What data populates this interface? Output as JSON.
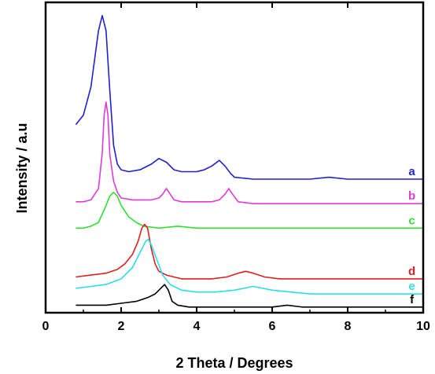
{
  "chart_data": {
    "type": "line",
    "xlabel": "2 Theta / Degrees",
    "ylabel": "Intensity / a.u",
    "xlim": [
      0,
      10
    ],
    "xticks": [
      "0",
      "2",
      "4",
      "6",
      "8",
      "10"
    ],
    "yticks_shown": false,
    "grid": false,
    "legend": "inline labels at right end of each trace",
    "series": [
      {
        "name": "a",
        "color": "#1f1fd6",
        "points": [
          [
            0.8,
            100
          ],
          [
            1.0,
            105
          ],
          [
            1.2,
            120
          ],
          [
            1.3,
            135
          ],
          [
            1.4,
            150
          ],
          [
            1.5,
            158
          ],
          [
            1.6,
            150
          ],
          [
            1.7,
            118
          ],
          [
            1.8,
            89
          ],
          [
            1.9,
            79
          ],
          [
            2.0,
            76
          ],
          [
            2.2,
            75
          ],
          [
            2.5,
            76
          ],
          [
            2.8,
            79
          ],
          [
            3.0,
            82
          ],
          [
            3.2,
            80
          ],
          [
            3.4,
            76
          ],
          [
            3.6,
            75
          ],
          [
            3.8,
            75
          ],
          [
            4.0,
            75
          ],
          [
            4.2,
            76
          ],
          [
            4.4,
            78
          ],
          [
            4.6,
            81
          ],
          [
            4.75,
            78
          ],
          [
            4.9,
            74
          ],
          [
            5.0,
            72
          ],
          [
            5.5,
            71
          ],
          [
            6.0,
            71
          ],
          [
            7.0,
            71
          ],
          [
            7.5,
            72
          ],
          [
            8.0,
            71
          ],
          [
            9.0,
            71
          ],
          [
            10.0,
            71
          ]
        ]
      },
      {
        "name": "b",
        "color": "#e23ad8",
        "points": [
          [
            0.8,
            59
          ],
          [
            1.0,
            59
          ],
          [
            1.2,
            60
          ],
          [
            1.4,
            66
          ],
          [
            1.5,
            85
          ],
          [
            1.55,
            105
          ],
          [
            1.6,
            112
          ],
          [
            1.65,
            105
          ],
          [
            1.7,
            84
          ],
          [
            1.8,
            70
          ],
          [
            1.9,
            64
          ],
          [
            2.0,
            61
          ],
          [
            2.3,
            60
          ],
          [
            2.6,
            60
          ],
          [
            2.8,
            60
          ],
          [
            3.0,
            61
          ],
          [
            3.1,
            63
          ],
          [
            3.2,
            66
          ],
          [
            3.3,
            63
          ],
          [
            3.4,
            60
          ],
          [
            3.6,
            59
          ],
          [
            4.0,
            59
          ],
          [
            4.4,
            59
          ],
          [
            4.6,
            60
          ],
          [
            4.75,
            63
          ],
          [
            4.85,
            66
          ],
          [
            4.95,
            63
          ],
          [
            5.1,
            59
          ],
          [
            5.5,
            58
          ],
          [
            6.0,
            58
          ],
          [
            7.0,
            58
          ],
          [
            8.0,
            58
          ],
          [
            9.0,
            58
          ],
          [
            10.0,
            58
          ]
        ]
      },
      {
        "name": "c",
        "color": "#2ee22e",
        "points": [
          [
            0.8,
            45
          ],
          [
            1.0,
            45
          ],
          [
            1.2,
            46
          ],
          [
            1.4,
            48
          ],
          [
            1.6,
            57
          ],
          [
            1.7,
            62
          ],
          [
            1.8,
            64
          ],
          [
            1.9,
            62
          ],
          [
            2.0,
            57
          ],
          [
            2.2,
            51
          ],
          [
            2.4,
            48
          ],
          [
            2.6,
            46
          ],
          [
            3.0,
            45
          ],
          [
            3.5,
            46
          ],
          [
            4.0,
            45
          ],
          [
            5.0,
            45
          ],
          [
            5.5,
            45
          ],
          [
            6.0,
            45
          ],
          [
            7.0,
            45
          ],
          [
            8.0,
            45
          ],
          [
            9.0,
            45
          ],
          [
            10.0,
            45
          ]
        ]
      },
      {
        "name": "d",
        "color": "#e01f1f",
        "points": [
          [
            0.8,
            19
          ],
          [
            1.2,
            20
          ],
          [
            1.6,
            21
          ],
          [
            1.9,
            23
          ],
          [
            2.1,
            26
          ],
          [
            2.3,
            31
          ],
          [
            2.45,
            38
          ],
          [
            2.55,
            45
          ],
          [
            2.62,
            47
          ],
          [
            2.7,
            45
          ],
          [
            2.8,
            34
          ],
          [
            2.9,
            26
          ],
          [
            3.0,
            22
          ],
          [
            3.2,
            20
          ],
          [
            3.6,
            18
          ],
          [
            4.0,
            18
          ],
          [
            4.4,
            18
          ],
          [
            4.8,
            19
          ],
          [
            5.1,
            21
          ],
          [
            5.3,
            22
          ],
          [
            5.5,
            21
          ],
          [
            5.8,
            19
          ],
          [
            6.2,
            18
          ],
          [
            7.0,
            18
          ],
          [
            8.0,
            18
          ],
          [
            9.0,
            18
          ],
          [
            10.0,
            18
          ]
        ]
      },
      {
        "name": "e",
        "color": "#28e0e8",
        "points": [
          [
            0.8,
            13
          ],
          [
            1.2,
            14
          ],
          [
            1.6,
            15
          ],
          [
            2.0,
            18
          ],
          [
            2.3,
            24
          ],
          [
            2.5,
            32
          ],
          [
            2.65,
            38
          ],
          [
            2.72,
            39
          ],
          [
            2.8,
            36
          ],
          [
            2.95,
            28
          ],
          [
            3.1,
            20
          ],
          [
            3.3,
            15
          ],
          [
            3.6,
            12
          ],
          [
            4.0,
            11
          ],
          [
            4.5,
            11
          ],
          [
            5.0,
            12
          ],
          [
            5.5,
            14
          ],
          [
            6.0,
            12
          ],
          [
            6.5,
            11
          ],
          [
            7.0,
            10
          ],
          [
            8.0,
            10
          ],
          [
            9.0,
            10
          ],
          [
            10.0,
            10
          ]
        ]
      },
      {
        "name": "f",
        "color": "#000000",
        "points": [
          [
            0.8,
            4
          ],
          [
            1.2,
            4
          ],
          [
            1.6,
            4
          ],
          [
            2.0,
            5
          ],
          [
            2.4,
            6
          ],
          [
            2.7,
            8
          ],
          [
            2.9,
            10
          ],
          [
            3.05,
            13
          ],
          [
            3.15,
            15
          ],
          [
            3.25,
            12
          ],
          [
            3.35,
            6
          ],
          [
            3.5,
            4
          ],
          [
            3.8,
            3
          ],
          [
            4.5,
            3
          ],
          [
            5.5,
            3
          ],
          [
            6.0,
            3
          ],
          [
            6.4,
            4
          ],
          [
            6.8,
            3
          ],
          [
            7.5,
            3
          ],
          [
            8.5,
            3
          ],
          [
            9.5,
            3
          ],
          [
            10.0,
            3
          ]
        ]
      }
    ]
  }
}
